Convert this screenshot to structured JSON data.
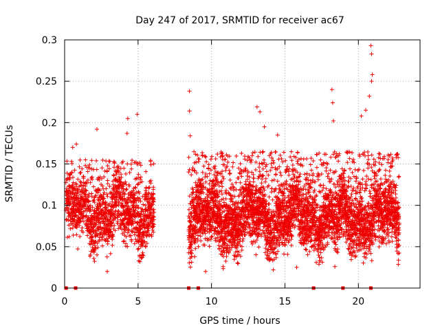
{
  "chart_data": {
    "type": "scatter",
    "title": "Day 247 of 2017, SRMTID for receiver ac67",
    "xlabel": "GPS time / hours",
    "ylabel": "SRMTID / TECUs",
    "xlim": [
      0,
      24.2
    ],
    "ylim": [
      0,
      0.3
    ],
    "x_ticks": [
      0,
      5,
      10,
      15,
      20
    ],
    "x_tick_labels": [
      "0",
      "5",
      "10",
      "15",
      "20"
    ],
    "y_ticks": [
      0,
      0.05,
      0.1,
      0.15,
      0.2,
      0.25,
      0.3
    ],
    "y_tick_labels": [
      "0",
      "0.05",
      "0.1",
      "0.15",
      "0.2",
      "0.25",
      "0.3"
    ],
    "grid": true,
    "marker": "plus",
    "color": "#ee0000",
    "zero_markers_x": [
      0.1,
      0.75,
      8.45,
      9.1,
      16.95,
      18.95,
      20.85
    ],
    "outliers": [
      {
        "x": 8.5,
        "y": 0.238
      },
      {
        "x": 8.5,
        "y": 0.214
      },
      {
        "x": 8.55,
        "y": 0.184
      },
      {
        "x": 2.2,
        "y": 0.192
      },
      {
        "x": 4.3,
        "y": 0.205
      },
      {
        "x": 4.95,
        "y": 0.21
      },
      {
        "x": 4.25,
        "y": 0.187
      },
      {
        "x": 13.1,
        "y": 0.219
      },
      {
        "x": 13.3,
        "y": 0.213
      },
      {
        "x": 13.6,
        "y": 0.195
      },
      {
        "x": 14.5,
        "y": 0.185
      },
      {
        "x": 18.2,
        "y": 0.24
      },
      {
        "x": 18.25,
        "y": 0.224
      },
      {
        "x": 18.3,
        "y": 0.202
      },
      {
        "x": 20.2,
        "y": 0.208
      },
      {
        "x": 20.85,
        "y": 0.293
      },
      {
        "x": 20.9,
        "y": 0.283
      },
      {
        "x": 20.95,
        "y": 0.258
      },
      {
        "x": 20.9,
        "y": 0.25
      },
      {
        "x": 20.75,
        "y": 0.232
      },
      {
        "x": 20.5,
        "y": 0.215
      },
      {
        "x": 0.55,
        "y": 0.17
      },
      {
        "x": 0.8,
        "y": 0.174
      },
      {
        "x": 2.9,
        "y": 0.02
      },
      {
        "x": 9.6,
        "y": 0.02
      },
      {
        "x": 15.8,
        "y": 0.025
      },
      {
        "x": 18.4,
        "y": 0.026
      }
    ],
    "segments": [
      {
        "start": 0.1,
        "end": 6.1,
        "mean": 0.09,
        "peak": 0.12,
        "spread": 0.055,
        "step": 0.035
      },
      {
        "start": 8.45,
        "end": 22.8,
        "mean": 0.085,
        "peak": 0.13,
        "spread": 0.058,
        "step": 0.028
      }
    ]
  }
}
